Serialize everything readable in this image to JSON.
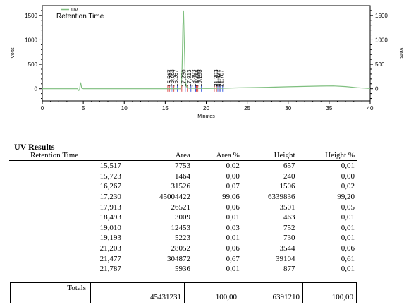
{
  "chart_data": {
    "type": "line",
    "series": [
      {
        "name": "UV",
        "color": "#7fbf7f",
        "x": [
          0,
          4.3,
          4.45,
          4.55,
          4.62,
          4.7,
          4.8,
          5.0,
          8,
          12,
          15,
          16.9,
          17.05,
          17.15,
          17.23,
          17.32,
          17.45,
          17.6,
          17.9,
          20,
          22,
          24,
          26,
          28,
          30,
          32,
          34,
          35.5,
          37,
          38.5,
          40
        ],
        "y": [
          0,
          0,
          -35,
          -20,
          80,
          110,
          15,
          0,
          0,
          0,
          0,
          0,
          400,
          1300,
          1600,
          1000,
          150,
          40,
          10,
          5,
          10,
          18,
          25,
          32,
          40,
          48,
          55,
          58,
          45,
          20,
          5
        ]
      }
    ],
    "legend": [
      "UV"
    ],
    "legend_position": "top-left",
    "title_in_plot": "Retention Time",
    "xlabel": "Minutes",
    "ylabel_left": "Volts",
    "ylabel_right": "Volts",
    "xlim": [
      0,
      40
    ],
    "ylim": [
      -250,
      1700
    ],
    "x_ticks": [
      0,
      5,
      10,
      15,
      20,
      25,
      30,
      35,
      40
    ],
    "y_ticks": [
      0,
      500,
      1000,
      1500
    ],
    "peak_labels": [
      {
        "rt": 15.517,
        "label": "15,517"
      },
      {
        "rt": 15.723,
        "label": "15,723"
      },
      {
        "rt": 16.267,
        "label": "16,267"
      },
      {
        "rt": 17.23,
        "label": "17,230"
      },
      {
        "rt": 17.913,
        "label": "17,913"
      },
      {
        "rt": 18.493,
        "label": "18,493"
      },
      {
        "rt": 19.01,
        "label": "19,010"
      },
      {
        "rt": 19.193,
        "label": "19,193"
      },
      {
        "rt": 21.203,
        "label": "21,203"
      },
      {
        "rt": 21.477,
        "label": "21,477"
      },
      {
        "rt": 21.787,
        "label": "21,787"
      }
    ],
    "peak_marker_colors": {
      "start": "#e05050",
      "end": "#4060e0"
    }
  },
  "results": {
    "title": "UV Results",
    "columns": [
      "Retention Time",
      "Area",
      "Area %",
      "Height",
      "Height %"
    ],
    "rows": [
      [
        "15,517",
        "7753",
        "0,02",
        "657",
        "0,01"
      ],
      [
        "15,723",
        "1464",
        "0,00",
        "240",
        "0,00"
      ],
      [
        "16,267",
        "31526",
        "0,07",
        "1506",
        "0,02"
      ],
      [
        "17,230",
        "45004422",
        "99,06",
        "6339836",
        "99,20"
      ],
      [
        "17,913",
        "26521",
        "0,06",
        "3501",
        "0,05"
      ],
      [
        "18,493",
        "3009",
        "0,01",
        "463",
        "0,01"
      ],
      [
        "19,010",
        "12453",
        "0,03",
        "752",
        "0,01"
      ],
      [
        "19,193",
        "5223",
        "0,01",
        "730",
        "0,01"
      ],
      [
        "21,203",
        "28052",
        "0,06",
        "3544",
        "0,06"
      ],
      [
        "21,477",
        "304872",
        "0,67",
        "39104",
        "0,61"
      ],
      [
        "21,787",
        "5936",
        "0,01",
        "877",
        "0,01"
      ]
    ],
    "totals": {
      "label": "Totals",
      "area": "45431231",
      "area_pct": "100,00",
      "height": "6391210",
      "height_pct": "100,00"
    }
  }
}
